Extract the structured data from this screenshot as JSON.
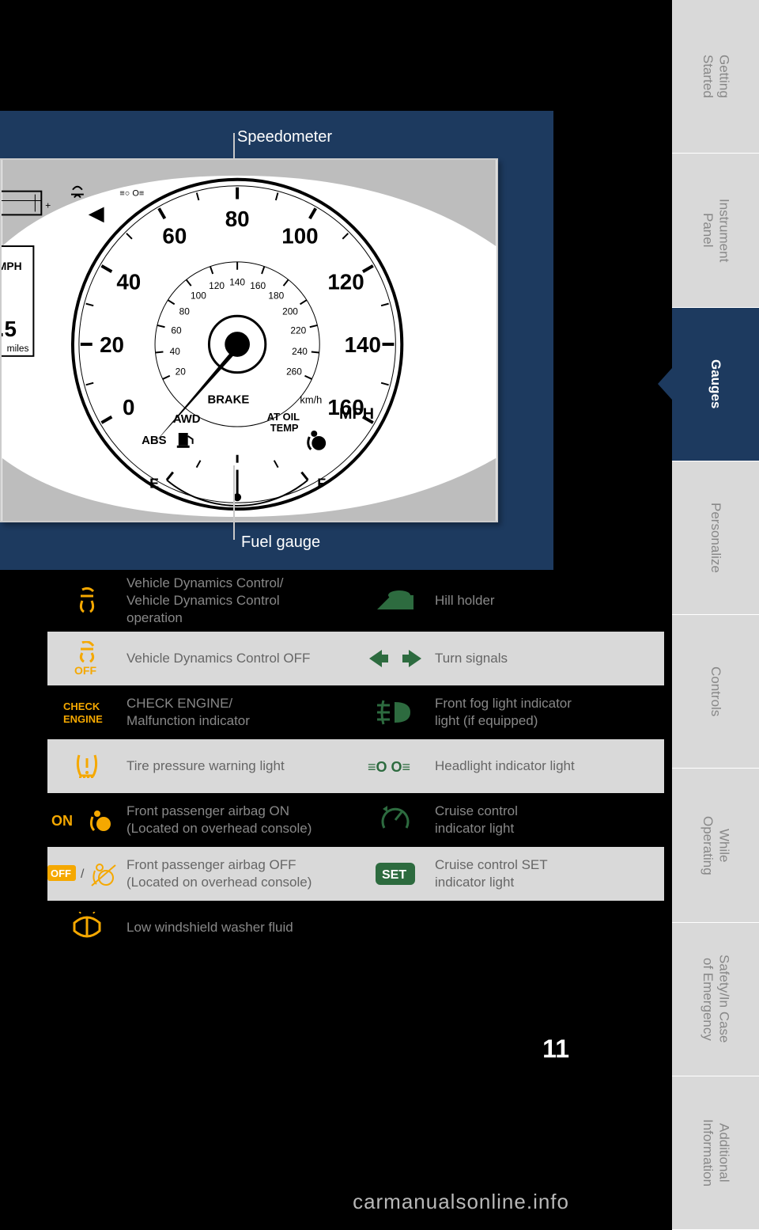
{
  "sidebar": {
    "tabs": [
      {
        "label": "Getting\nStarted"
      },
      {
        "label": "Instrument\nPanel"
      },
      {
        "label": "Gauges"
      },
      {
        "label": "Personalize"
      },
      {
        "label": "Controls"
      },
      {
        "label": "While\nOperating"
      },
      {
        "label": "Safety/In Case\nof Emergency"
      },
      {
        "label": "Additional\nInformation"
      }
    ],
    "active_index": 2,
    "inactive_bg": "#d9d9d9",
    "inactive_fg": "#888888",
    "active_bg": "#1d3a5f",
    "active_fg": "#ffffff"
  },
  "callouts": {
    "top": "Speedometer",
    "bottom": "Fuel gauge"
  },
  "figure": {
    "panel_bg": "#1d3a5f",
    "gauge_bg": "#ffffff",
    "speedometer": {
      "outer_ticks_mph": [
        "0",
        "20",
        "40",
        "60",
        "80",
        "100",
        "120",
        "140",
        "160"
      ],
      "inner_ticks_kmh": [
        "20",
        "40",
        "60",
        "80",
        "100",
        "120",
        "140",
        "160",
        "180",
        "200",
        "220",
        "240",
        "260"
      ],
      "mph_label": "MPH",
      "kmh_label": "km/h",
      "center_ring_fill": "#ffffff",
      "needle_angle_deg": -140
    },
    "inner_text": {
      "brake": "BRAKE",
      "awd": "AWD",
      "abs": "ABS",
      "at_oil": "AT OIL",
      "temp": "TEMP"
    },
    "fuel": {
      "empty": "E",
      "full": "F"
    },
    "side_fragment": {
      "mph": "MPH",
      "value": ".5",
      "miles": "miles"
    }
  },
  "indicators": {
    "amber": "#f5a800",
    "green": "#2d6b3f",
    "row_dark_fg": "#888888",
    "row_light_bg": "#d9d9d9",
    "row_light_fg": "#666666",
    "rows": [
      {
        "shade": "dark",
        "left_icon": "vdc",
        "left_text": "Vehicle Dynamics Control/\nVehicle Dynamics Control\noperation",
        "right_icon": "hill",
        "right_text": "Hill holder"
      },
      {
        "shade": "light",
        "left_icon": "vdc-off",
        "left_text": "Vehicle Dynamics Control OFF",
        "right_icon": "turn",
        "right_text": "Turn signals"
      },
      {
        "shade": "dark",
        "left_icon": "check",
        "left_text": "CHECK ENGINE/\nMalfunction indicator",
        "right_icon": "fog",
        "right_text": "Front fog light indicator\nlight (if equipped)"
      },
      {
        "shade": "light",
        "left_icon": "tire",
        "left_text": "Tire pressure warning light",
        "right_icon": "headlight",
        "right_text": "Headlight indicator light"
      },
      {
        "shade": "dark",
        "left_icon": "airbag-on",
        "left_text": "Front passenger airbag ON\n(Located on overhead console)",
        "right_icon": "cruise",
        "right_text": "Cruise control\nindicator light"
      },
      {
        "shade": "light",
        "left_icon": "airbag-off",
        "left_text": "Front passenger airbag OFF\n(Located on overhead console)",
        "right_icon": "set",
        "right_text": "Cruise control SET\nindicator light"
      },
      {
        "shade": "dark",
        "left_icon": "washer",
        "left_text": "Low windshield washer fluid",
        "right_icon": "",
        "right_text": ""
      }
    ]
  },
  "page_number": "11",
  "watermark": "carmanualsonline.info"
}
